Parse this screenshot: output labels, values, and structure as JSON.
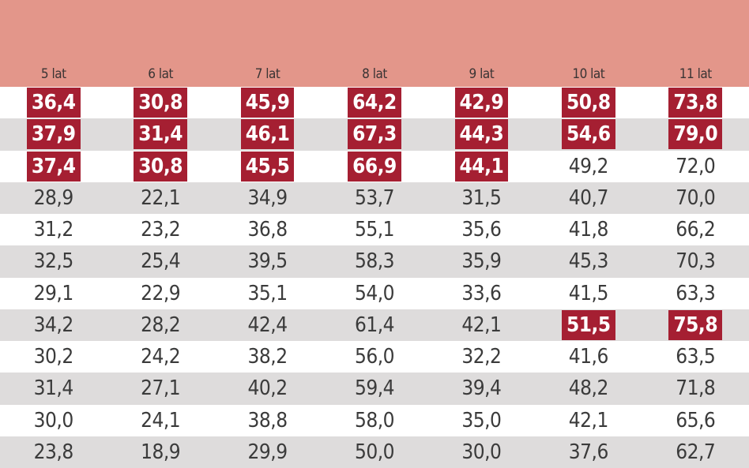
{
  "colors": {
    "header_bg": "#e3968a",
    "highlight_bg": "#a51f32",
    "alt_row_bg": "#dedcdc"
  },
  "headers": [
    "5 lat",
    "6 lat",
    "7 lat",
    "8 lat",
    "9 lat",
    "10 lat",
    "11 lat"
  ],
  "rows": [
    {
      "alt": false,
      "cells": [
        {
          "v": "36,4",
          "h": true
        },
        {
          "v": "30,8",
          "h": true
        },
        {
          "v": "45,9",
          "h": true
        },
        {
          "v": "64,2",
          "h": true
        },
        {
          "v": "42,9",
          "h": true
        },
        {
          "v": "50,8",
          "h": true
        },
        {
          "v": "73,8",
          "h": true
        }
      ]
    },
    {
      "alt": true,
      "cells": [
        {
          "v": "37,9",
          "h": true
        },
        {
          "v": "31,4",
          "h": true
        },
        {
          "v": "46,1",
          "h": true
        },
        {
          "v": "67,3",
          "h": true
        },
        {
          "v": "44,3",
          "h": true
        },
        {
          "v": "54,6",
          "h": true
        },
        {
          "v": "79,0",
          "h": true
        }
      ]
    },
    {
      "alt": false,
      "cells": [
        {
          "v": "37,4",
          "h": true
        },
        {
          "v": "30,8",
          "h": true
        },
        {
          "v": "45,5",
          "h": true
        },
        {
          "v": "66,9",
          "h": true
        },
        {
          "v": "44,1",
          "h": true
        },
        {
          "v": "49,2",
          "h": false
        },
        {
          "v": "72,0",
          "h": false
        }
      ]
    },
    {
      "alt": true,
      "cells": [
        {
          "v": "28,9",
          "h": false
        },
        {
          "v": "22,1",
          "h": false
        },
        {
          "v": "34,9",
          "h": false
        },
        {
          "v": "53,7",
          "h": false
        },
        {
          "v": "31,5",
          "h": false
        },
        {
          "v": "40,7",
          "h": false
        },
        {
          "v": "70,0",
          "h": false
        }
      ]
    },
    {
      "alt": false,
      "cells": [
        {
          "v": "31,2",
          "h": false
        },
        {
          "v": "23,2",
          "h": false
        },
        {
          "v": "36,8",
          "h": false
        },
        {
          "v": "55,1",
          "h": false
        },
        {
          "v": "35,6",
          "h": false
        },
        {
          "v": "41,8",
          "h": false
        },
        {
          "v": "66,2",
          "h": false
        }
      ]
    },
    {
      "alt": true,
      "cells": [
        {
          "v": "32,5",
          "h": false
        },
        {
          "v": "25,4",
          "h": false
        },
        {
          "v": "39,5",
          "h": false
        },
        {
          "v": "58,3",
          "h": false
        },
        {
          "v": "35,9",
          "h": false
        },
        {
          "v": "45,3",
          "h": false
        },
        {
          "v": "70,3",
          "h": false
        }
      ]
    },
    {
      "alt": false,
      "cells": [
        {
          "v": "29,1",
          "h": false
        },
        {
          "v": "22,9",
          "h": false
        },
        {
          "v": "35,1",
          "h": false
        },
        {
          "v": "54,0",
          "h": false
        },
        {
          "v": "33,6",
          "h": false
        },
        {
          "v": "41,5",
          "h": false
        },
        {
          "v": "63,3",
          "h": false
        }
      ]
    },
    {
      "alt": true,
      "cells": [
        {
          "v": "34,2",
          "h": false
        },
        {
          "v": "28,2",
          "h": false
        },
        {
          "v": "42,4",
          "h": false
        },
        {
          "v": "61,4",
          "h": false
        },
        {
          "v": "42,1",
          "h": false
        },
        {
          "v": "51,5",
          "h": true
        },
        {
          "v": "75,8",
          "h": true
        }
      ]
    },
    {
      "alt": false,
      "cells": [
        {
          "v": "30,2",
          "h": false
        },
        {
          "v": "24,2",
          "h": false
        },
        {
          "v": "38,2",
          "h": false
        },
        {
          "v": "56,0",
          "h": false
        },
        {
          "v": "32,2",
          "h": false
        },
        {
          "v": "41,6",
          "h": false
        },
        {
          "v": "63,5",
          "h": false
        }
      ]
    },
    {
      "alt": true,
      "cells": [
        {
          "v": "31,4",
          "h": false
        },
        {
          "v": "27,1",
          "h": false
        },
        {
          "v": "40,2",
          "h": false
        },
        {
          "v": "59,4",
          "h": false
        },
        {
          "v": "39,4",
          "h": false
        },
        {
          "v": "48,2",
          "h": false
        },
        {
          "v": "71,8",
          "h": false
        }
      ]
    },
    {
      "alt": false,
      "cells": [
        {
          "v": "30,0",
          "h": false
        },
        {
          "v": "24,1",
          "h": false
        },
        {
          "v": "38,8",
          "h": false
        },
        {
          "v": "58,0",
          "h": false
        },
        {
          "v": "35,0",
          "h": false
        },
        {
          "v": "42,1",
          "h": false
        },
        {
          "v": "65,6",
          "h": false
        }
      ]
    },
    {
      "alt": true,
      "cells": [
        {
          "v": "23,8",
          "h": false
        },
        {
          "v": "18,9",
          "h": false
        },
        {
          "v": "29,9",
          "h": false
        },
        {
          "v": "50,0",
          "h": false
        },
        {
          "v": "30,0",
          "h": false
        },
        {
          "v": "37,6",
          "h": false
        },
        {
          "v": "62,7",
          "h": false
        }
      ]
    }
  ]
}
